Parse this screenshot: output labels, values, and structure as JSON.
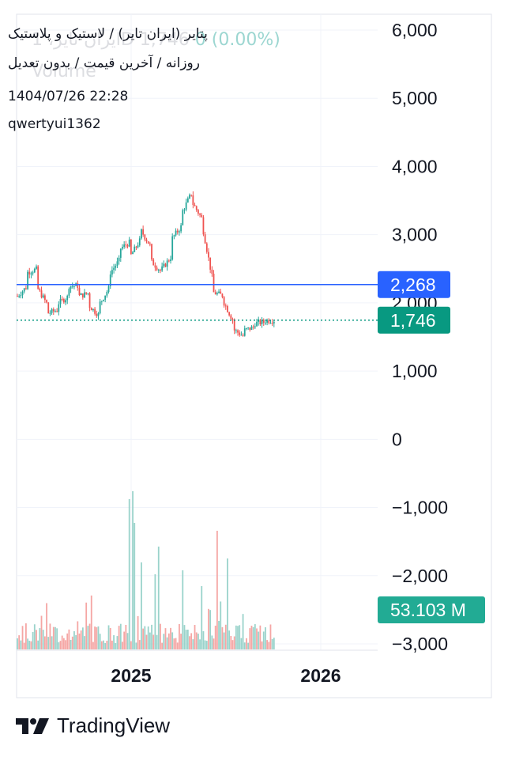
{
  "header": {
    "title": "پتایر (ایران تایر) / لاستیک و پلاستیک",
    "subtitle": "روزانه / آخرین قیمت / بدون تعدیل",
    "datetime": "1404/07/26 22:28",
    "author": "qwertyui1362",
    "ghost_symbol": "ایران تایر، 1D",
    "ghost_price": "1,746",
    "ghost_change": "0 (0.00%)",
    "ghost_volume": "Volume"
  },
  "brand": {
    "name": "TradingView",
    "icon": "tradingview-logo-icon"
  },
  "colors": {
    "up": "#26a69a",
    "down": "#ef5350",
    "up_vol": "#9ad3cb",
    "down_vol": "#f5a6a4",
    "blue_line": "#2962ff",
    "price_tag": "#089981",
    "volume_tag": "#22ab94",
    "grid": "#f0f3fa"
  },
  "chart_data": {
    "type": "candlestick",
    "title": "",
    "x_ticks": [
      "2025",
      "2026"
    ],
    "y_ticks": [
      "6,000",
      "5,000",
      "4,000",
      "3,000",
      "2,000",
      "1,000",
      "0",
      "−1,000",
      "−2,000",
      "−3,000"
    ],
    "ylim": [
      -3000,
      6000
    ],
    "grid": true,
    "horizontal_line": {
      "value": 2268,
      "label": "2,268"
    },
    "last_price": {
      "value": 1746,
      "label": "1,746"
    },
    "volume_label": "53.103 M",
    "series": [
      {
        "name": "price",
        "approx_path": [
          [
            2100,
            2250
          ],
          [
            2450,
            2500
          ],
          [
            2200,
            1950
          ],
          [
            1850,
            1900
          ],
          [
            2000,
            2100
          ],
          [
            2250,
            2250
          ],
          [
            2100,
            2150
          ],
          [
            1950,
            1800
          ],
          [
            2000,
            2250
          ],
          [
            2450,
            2650
          ],
          [
            2800,
            2900
          ],
          [
            2700,
            2950
          ],
          [
            3050,
            2800
          ],
          [
            2600,
            2450
          ],
          [
            2500,
            2700
          ],
          [
            2950,
            3150
          ],
          [
            3350,
            3650
          ],
          [
            3450,
            3200
          ],
          [
            3050,
            2250
          ],
          [
            2150,
            2100
          ],
          [
            2000,
            1700
          ],
          [
            1600,
            1500
          ],
          [
            1600,
            1650
          ],
          [
            1700,
            1720
          ],
          [
            1740,
            1746
          ]
        ]
      }
    ]
  }
}
